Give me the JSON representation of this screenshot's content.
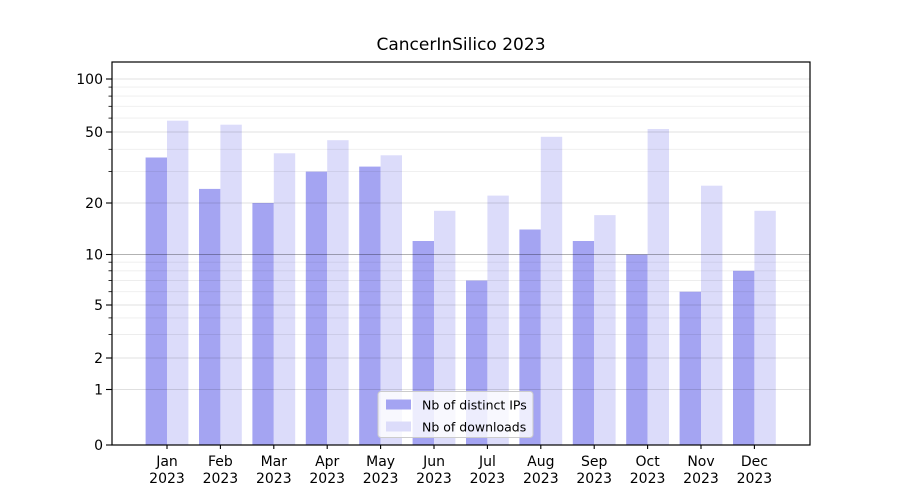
{
  "figure": {
    "title": "CancerInSilico 2023"
  },
  "chart_data": {
    "type": "bar",
    "title": "CancerInSilico 2023",
    "categories": [
      "Jan",
      "Feb",
      "Mar",
      "Apr",
      "May",
      "Jun",
      "Jul",
      "Aug",
      "Sep",
      "Oct",
      "Nov",
      "Dec"
    ],
    "category_year": "2023",
    "series": [
      {
        "name": "Nb of distinct IPs",
        "color": "#a4a4f2",
        "values": [
          36,
          24,
          20,
          30,
          32,
          12,
          7,
          14,
          12,
          10,
          6,
          8
        ]
      },
      {
        "name": "Nb of downloads",
        "color": "#dcdcfa",
        "values": [
          58,
          55,
          38,
          45,
          37,
          18,
          22,
          47,
          17,
          52,
          25,
          18
        ]
      }
    ],
    "xlabel": "",
    "ylabel": "",
    "yscale": "log-like (symlog, 0 shown at bottom)",
    "y_ticks": [
      0,
      1,
      2,
      5,
      10,
      20,
      50,
      100
    ],
    "y_minor_gridlines": [
      3,
      4,
      6,
      7,
      8,
      9,
      30,
      40,
      60,
      70,
      80,
      90
    ],
    "ylim": [
      0,
      125
    ],
    "grid": true,
    "legend_position": "lower center",
    "legend_labels": [
      "Nb of distinct IPs",
      "Nb of downloads"
    ]
  }
}
